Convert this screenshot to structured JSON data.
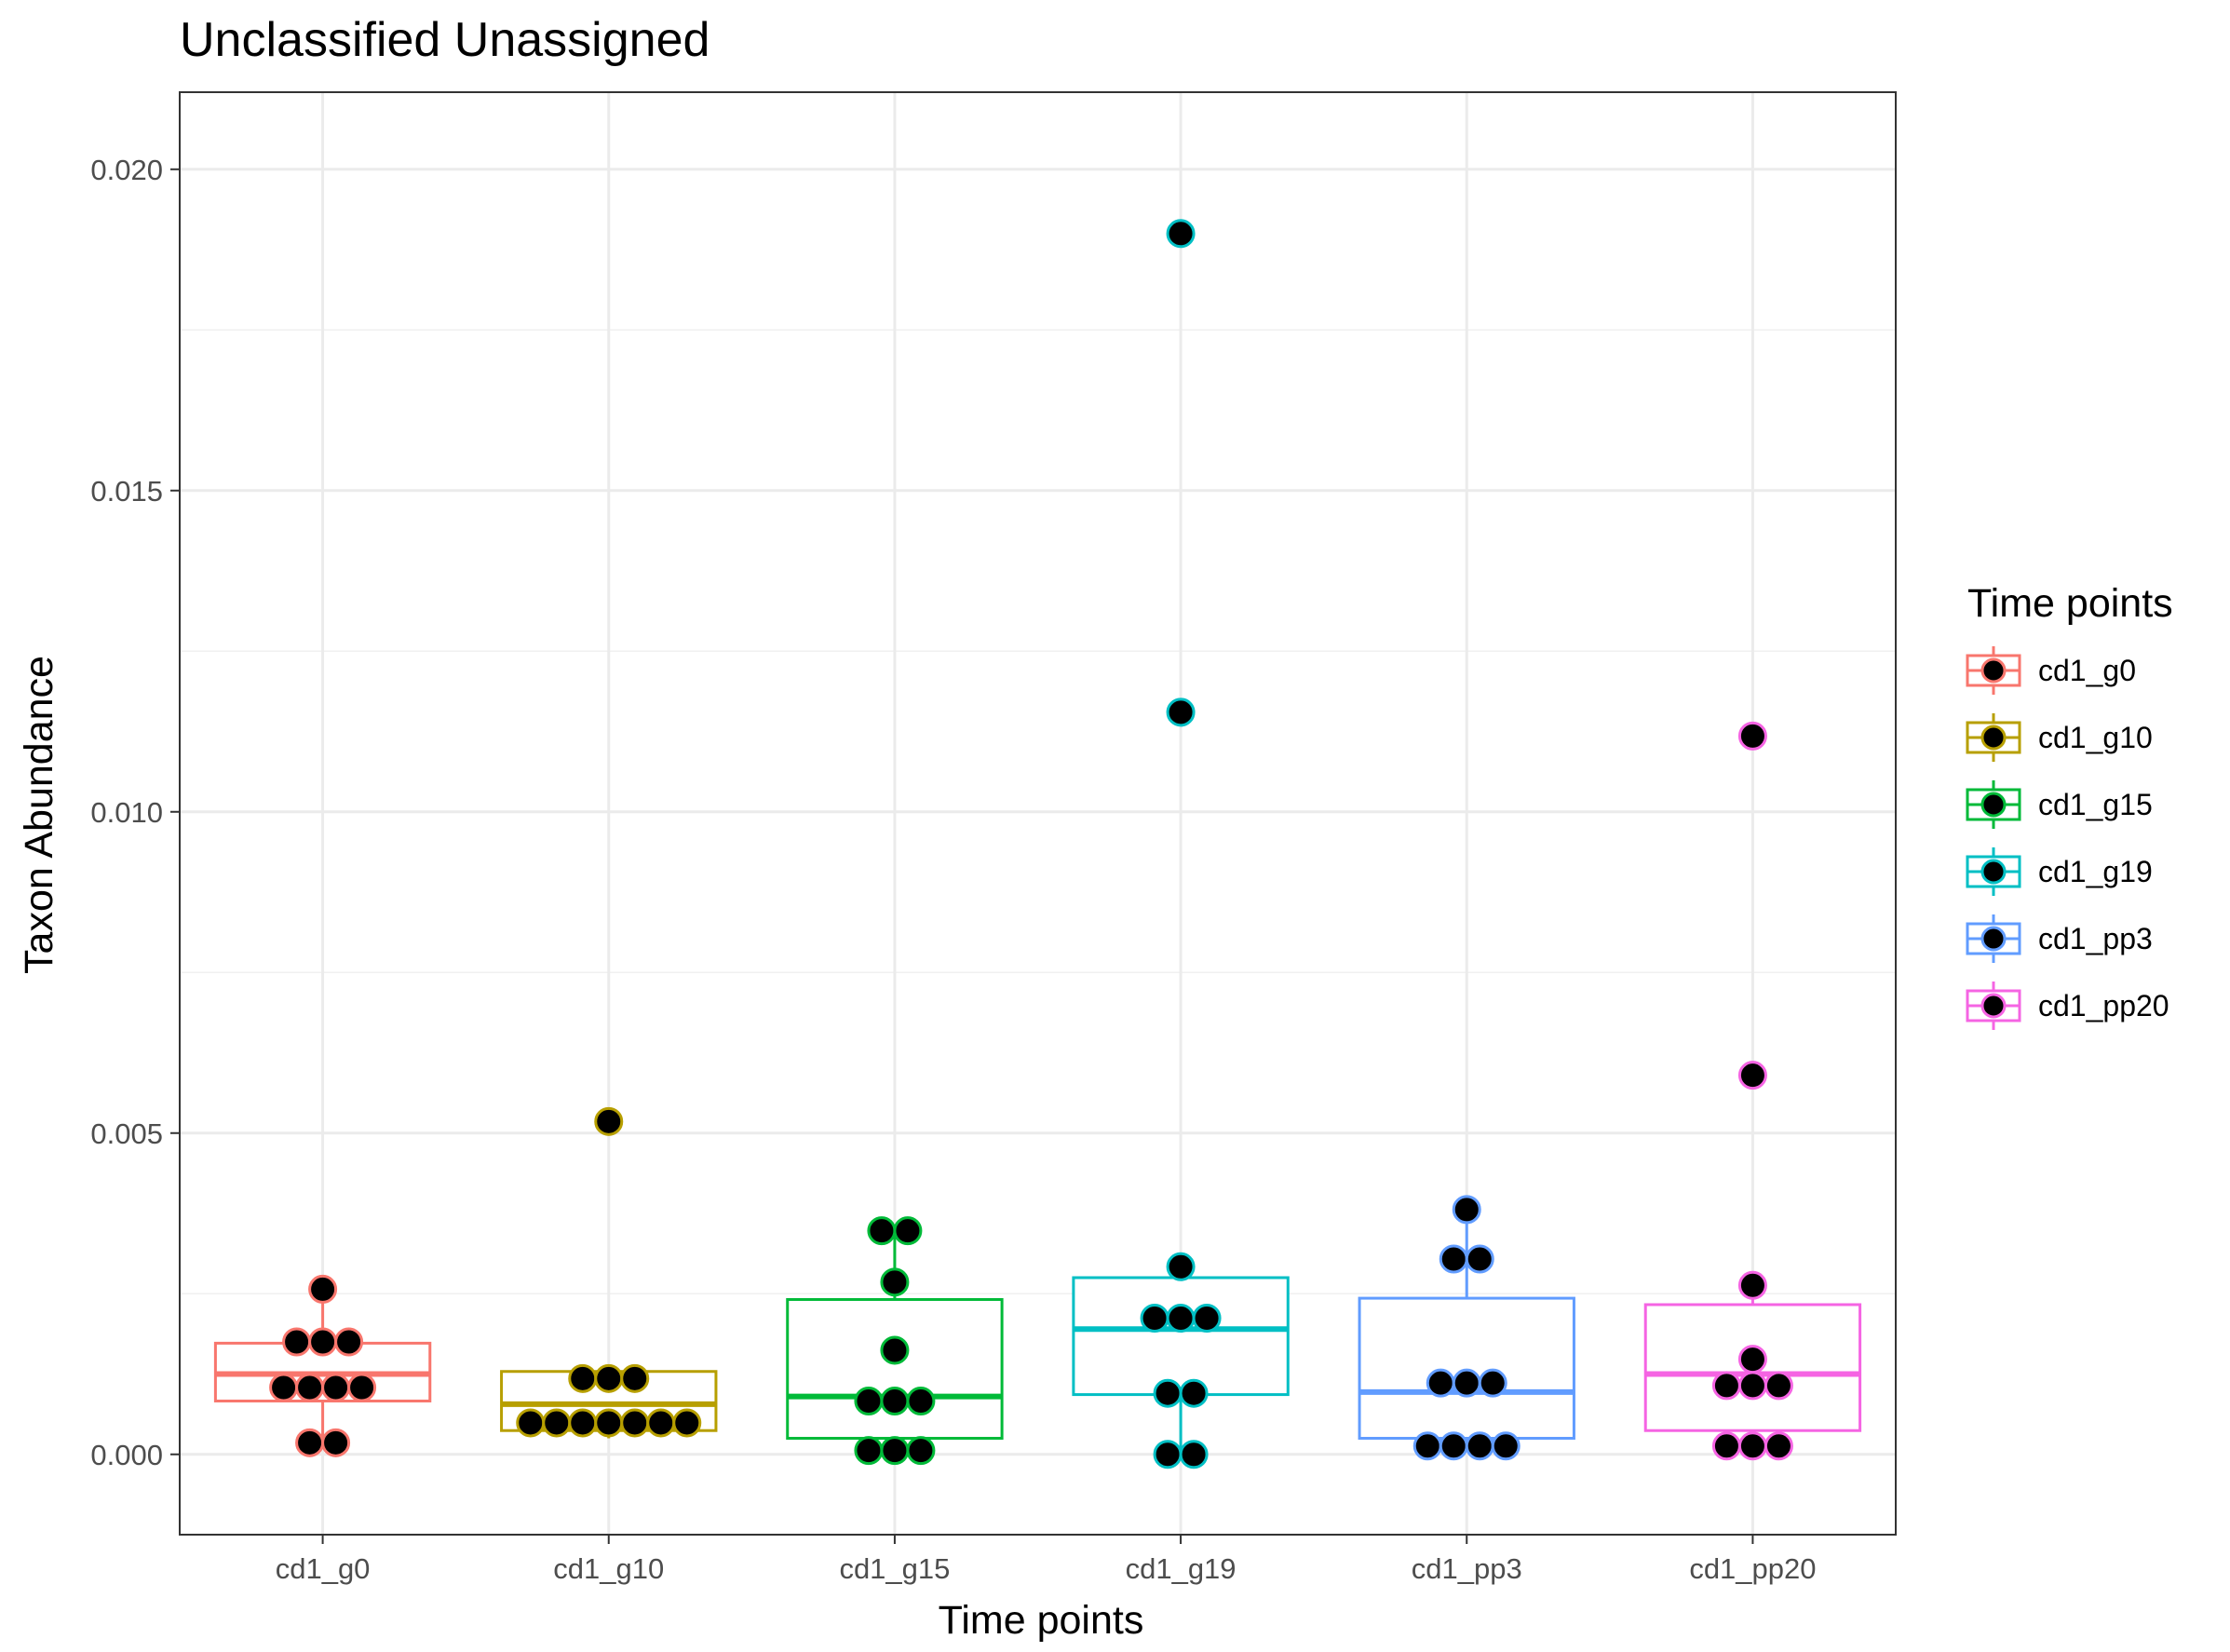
{
  "chart_data": {
    "type": "box",
    "title": "Unclassified Unassigned",
    "xlabel": "Time points",
    "ylabel": "Taxon Abundance",
    "ylim": [
      -0.00125,
      0.0212
    ],
    "yticks": [
      0.0,
      0.005,
      0.01,
      0.015,
      0.02
    ],
    "ytick_labels": [
      "0.000",
      "0.005",
      "0.010",
      "0.015",
      "0.020"
    ],
    "grid": true,
    "legend": {
      "title": "Time points",
      "position": "right"
    },
    "categories": [
      "cd1_g0",
      "cd1_g10",
      "cd1_g15",
      "cd1_g19",
      "cd1_pp3",
      "cd1_pp20"
    ],
    "series": [
      {
        "name": "cd1_g0",
        "color": "#F8766D",
        "box": {
          "whisker_low": 0.00018,
          "q1": 0.00083,
          "median": 0.00125,
          "q3": 0.00173,
          "whisker_high": 0.00257
        },
        "points": [
          0.00257,
          0.00175,
          0.00175,
          0.00175,
          0.00104,
          0.00104,
          0.00104,
          0.00104,
          0.00018,
          0.00018
        ]
      },
      {
        "name": "cd1_g10",
        "color": "#B79F00",
        "box": {
          "whisker_low": 0.00025,
          "q1": 0.00037,
          "median": 0.00078,
          "q3": 0.00129,
          "whisker_high": 0.00135
        },
        "points": [
          0.00518,
          0.00118,
          0.00118,
          0.00118,
          0.00049,
          0.00049,
          0.00049,
          0.00049,
          0.00049,
          0.00049,
          0.00049
        ]
      },
      {
        "name": "cd1_g15",
        "color": "#00BA38",
        "box": {
          "whisker_low": 6e-05,
          "q1": 0.00025,
          "median": 0.0009,
          "q3": 0.00241,
          "whisker_high": 0.00348
        },
        "points": [
          0.00348,
          0.00348,
          0.00268,
          0.00162,
          0.00083,
          0.00083,
          0.00083,
          6e-05,
          6e-05,
          6e-05
        ]
      },
      {
        "name": "cd1_g19",
        "color": "#00BFC4",
        "box": {
          "whisker_low": 0.0,
          "q1": 0.00093,
          "median": 0.00195,
          "q3": 0.00275,
          "whisker_high": 0.00292
        },
        "points": [
          0.019,
          0.01155,
          0.00292,
          0.00212,
          0.00212,
          0.00212,
          0.00095,
          0.00095,
          0.0,
          0.0
        ]
      },
      {
        "name": "cd1_pp3",
        "color": "#619CFF",
        "box": {
          "whisker_low": 0.00013,
          "q1": 0.00025,
          "median": 0.00097,
          "q3": 0.00243,
          "whisker_high": 0.00381
        },
        "points": [
          0.00381,
          0.00304,
          0.00304,
          0.00111,
          0.00111,
          0.00111,
          0.00013,
          0.00013,
          0.00013,
          0.00013
        ]
      },
      {
        "name": "cd1_pp20",
        "color": "#F564E3",
        "box": {
          "whisker_low": 0.00013,
          "q1": 0.00037,
          "median": 0.00125,
          "q3": 0.00233,
          "whisker_high": 0.00263
        },
        "points": [
          0.01118,
          0.0059,
          0.00263,
          0.00148,
          0.00107,
          0.00107,
          0.00107,
          0.00013,
          0.00013,
          0.00013
        ]
      }
    ]
  }
}
